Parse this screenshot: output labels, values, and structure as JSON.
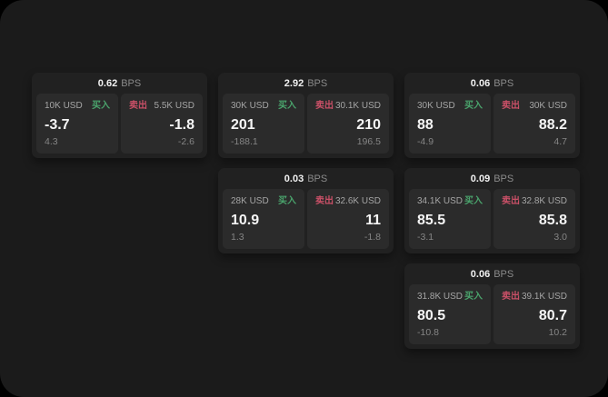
{
  "labels": {
    "bps_unit": "BPS",
    "buy": "买入",
    "sell": "卖出"
  },
  "colors": {
    "page_background": "#000000",
    "panel_background": "#1b1b1b",
    "card_background": "#212121",
    "tile_background": "#2b2b2b",
    "buy_accent": "#4aa36c",
    "sell_accent": "#c95067",
    "primary_text": "#f5f5f5",
    "muted_text": "#8b8b8b"
  },
  "cards": [
    {
      "bps": "0.62",
      "buy": {
        "amount": "10K USD",
        "price": "-3.7",
        "delta": "4.3"
      },
      "sell": {
        "amount": "5.5K USD",
        "price": "-1.8",
        "delta": "-2.6"
      }
    },
    {
      "bps": "2.92",
      "buy": {
        "amount": "30K USD",
        "price": "201",
        "delta": "-188.1"
      },
      "sell": {
        "amount": "30.1K USD",
        "price": "210",
        "delta": "196.5"
      }
    },
    {
      "bps": "0.06",
      "buy": {
        "amount": "30K USD",
        "price": "88",
        "delta": "-4.9"
      },
      "sell": {
        "amount": "30K USD",
        "price": "88.2",
        "delta": "4.7"
      }
    },
    {
      "bps": "0.03",
      "buy": {
        "amount": "28K USD",
        "price": "10.9",
        "delta": "1.3"
      },
      "sell": {
        "amount": "32.6K USD",
        "price": "11",
        "delta": "-1.8"
      }
    },
    {
      "bps": "0.09",
      "buy": {
        "amount": "34.1K USD",
        "price": "85.5",
        "delta": "-3.1"
      },
      "sell": {
        "amount": "32.8K USD",
        "price": "85.8",
        "delta": "3.0"
      }
    },
    {
      "bps": "0.06",
      "buy": {
        "amount": "31.8K USD",
        "price": "80.5",
        "delta": "-10.8"
      },
      "sell": {
        "amount": "39.1K USD",
        "price": "80.7",
        "delta": "10.2"
      }
    }
  ]
}
